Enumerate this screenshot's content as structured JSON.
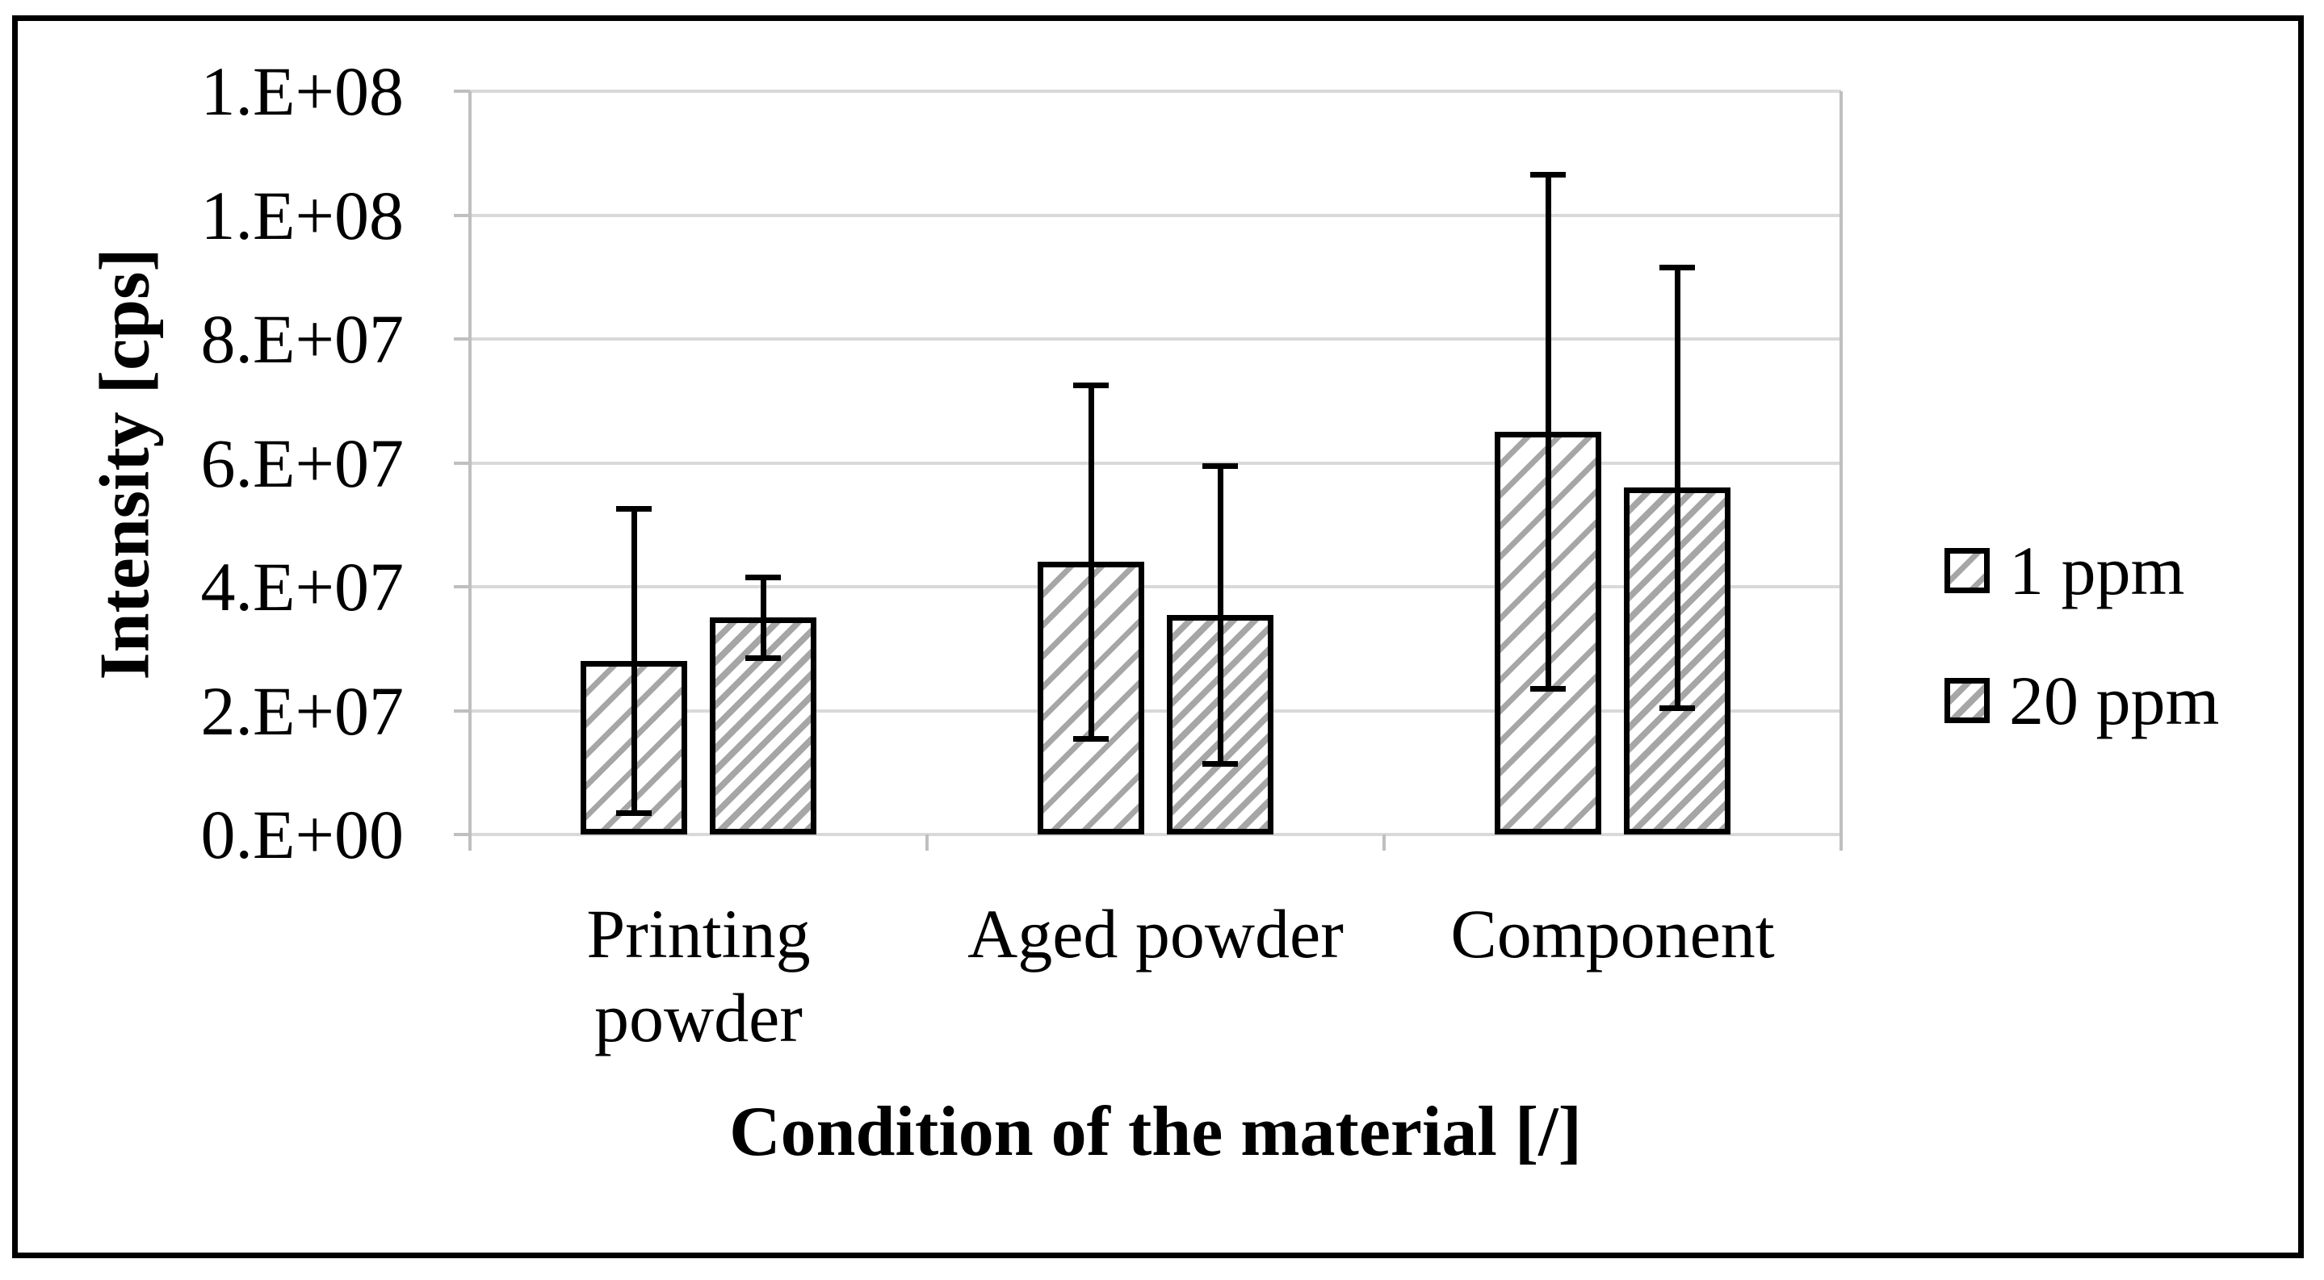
{
  "figure": {
    "background": "#ffffff",
    "border_color": "#000000"
  },
  "chart_data": {
    "type": "bar",
    "title": "",
    "xlabel": "Condition of the material [/]",
    "ylabel": "Intensity [cps]",
    "categories": [
      "Printing powder",
      "Aged powder",
      "Component"
    ],
    "category_display_lines": [
      [
        "Printing",
        "powder"
      ],
      [
        "Aged powder"
      ],
      [
        "Component"
      ]
    ],
    "series": [
      {
        "name": "1 ppm",
        "hatch": "diagonal-sparse",
        "values": [
          28000000,
          44000000,
          65000000
        ],
        "errors": [
          25000000,
          29000000,
          42000000
        ]
      },
      {
        "name": "20 ppm",
        "hatch": "diagonal-dense",
        "values": [
          35000000,
          35500000,
          56000000
        ],
        "errors": [
          7000000,
          24500000,
          36000000
        ]
      }
    ],
    "ylim": [
      0,
      120000000
    ],
    "ytick_interval": 20000000,
    "ytick_labels_bottom_to_top": [
      "0.E+00",
      "2.E+07",
      "4.E+07",
      "6.E+07",
      "8.E+07",
      "1.E+08",
      "1.E+08"
    ],
    "grid": true,
    "legend_position": "right-middle",
    "error_bars": true,
    "colors": {
      "bar_fill": "#ffffff",
      "hatch_stripe": "#a6a6a6",
      "bar_border": "#000000",
      "gridline": "#d9d9d9",
      "axis_line": "#bfbfbf",
      "error_bar": "#000000",
      "text": "#000000"
    }
  }
}
